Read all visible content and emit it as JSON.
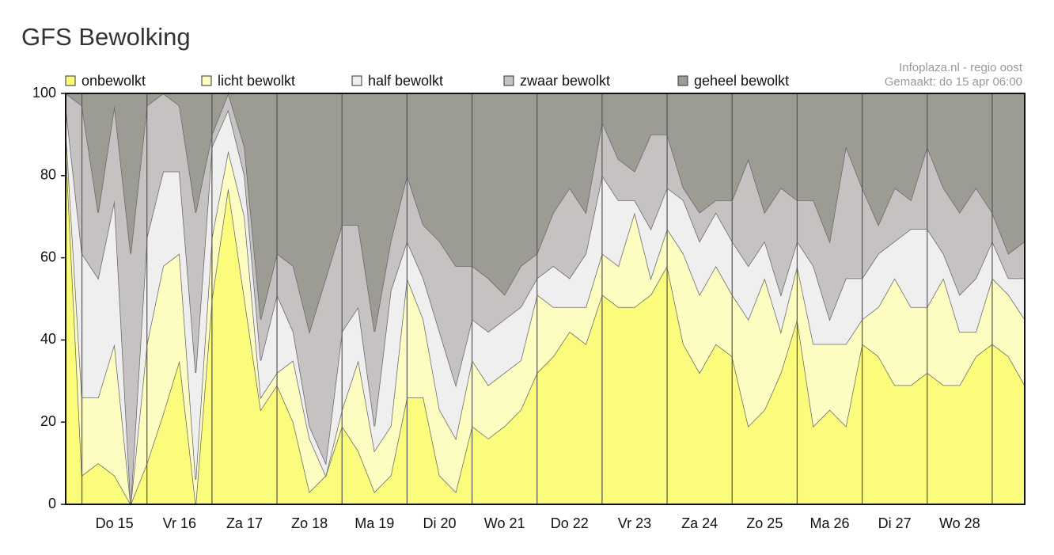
{
  "chart_data": {
    "type": "stacked_area",
    "title": "GFS Bewolking",
    "source": "Infoplaza.nl - regio oost",
    "created": "Gemaakt: do 15 apr 06:00",
    "categories": [
      null,
      null,
      null,
      "Do 15",
      null,
      null,
      null,
      "Vr 16",
      null,
      null,
      null,
      "Za 17",
      null,
      null,
      null,
      "Zo 18",
      null,
      null,
      null,
      "Ma 19",
      null,
      null,
      null,
      "Di 20",
      null,
      null,
      null,
      "Wo 21",
      null,
      null,
      null,
      "Do 22",
      null,
      null,
      null,
      "Vr 23",
      null,
      null,
      null,
      "Za 24",
      null,
      null,
      null,
      "Zo 25",
      null,
      null,
      null,
      "Ma 26",
      null,
      null,
      null,
      "Di 27",
      null,
      null,
      null,
      "Wo 28",
      null,
      null,
      null,
      null
    ],
    "series": [
      {
        "name": "onbewolkt",
        "color": "#fbfb7c",
        "values": [
          88,
          7,
          10,
          7,
          0,
          10,
          22,
          35,
          0,
          50,
          77,
          50,
          23,
          29,
          20,
          3,
          7,
          19,
          13,
          3,
          7,
          26,
          26,
          7,
          3,
          19,
          16,
          19,
          23,
          32,
          36,
          42,
          39,
          51,
          48,
          48,
          51,
          58,
          39,
          32,
          39,
          36,
          19,
          23,
          32,
          45,
          19,
          23,
          19,
          39,
          36,
          29,
          29,
          32,
          29,
          29,
          36,
          39,
          36,
          29
        ]
      },
      {
        "name": "licht bewolkt",
        "color": "#fdfdc2",
        "values": [
          4,
          19,
          16,
          32,
          0,
          29,
          36,
          26,
          6,
          15,
          9,
          20,
          3,
          3,
          15,
          13,
          0,
          4,
          22,
          10,
          12,
          29,
          19,
          16,
          13,
          16,
          13,
          13,
          12,
          19,
          12,
          6,
          9,
          10,
          10,
          23,
          4,
          9,
          22,
          19,
          19,
          15,
          26,
          32,
          10,
          13,
          20,
          16,
          20,
          6,
          12,
          26,
          19,
          16,
          26,
          13,
          6,
          16,
          15,
          16
        ]
      },
      {
        "name": "half bewolkt",
        "color": "#efefef",
        "values": [
          5,
          35,
          29,
          35,
          0,
          26,
          23,
          20,
          26,
          22,
          10,
          10,
          9,
          19,
          7,
          3,
          3,
          19,
          13,
          6,
          33,
          9,
          10,
          19,
          13,
          10,
          13,
          13,
          13,
          4,
          10,
          7,
          13,
          19,
          16,
          3,
          12,
          10,
          13,
          13,
          13,
          13,
          13,
          9,
          9,
          6,
          19,
          6,
          16,
          10,
          13,
          9,
          19,
          19,
          6,
          9,
          13,
          9,
          4,
          10
        ]
      },
      {
        "name": "zwaar bewolkt",
        "color": "#c6c2c2",
        "values": [
          3,
          36,
          16,
          23,
          61,
          32,
          19,
          16,
          39,
          3,
          4,
          7,
          10,
          10,
          16,
          23,
          45,
          26,
          20,
          23,
          12,
          16,
          13,
          22,
          29,
          13,
          13,
          6,
          10,
          6,
          13,
          22,
          10,
          13,
          10,
          7,
          23,
          13,
          3,
          7,
          3,
          10,
          26,
          7,
          26,
          10,
          16,
          19,
          32,
          22,
          7,
          13,
          7,
          20,
          16,
          20,
          22,
          7,
          6,
          9
        ]
      },
      {
        "name": "geheel bewolkt",
        "color": "#9c9c94",
        "values": [
          0,
          3,
          29,
          3,
          39,
          3,
          0,
          3,
          29,
          10,
          0,
          13,
          55,
          39,
          42,
          58,
          45,
          32,
          32,
          58,
          36,
          20,
          32,
          36,
          42,
          42,
          45,
          49,
          42,
          39,
          29,
          23,
          29,
          7,
          16,
          19,
          10,
          10,
          23,
          29,
          26,
          26,
          16,
          29,
          23,
          26,
          26,
          36,
          13,
          23,
          32,
          23,
          26,
          13,
          23,
          29,
          23,
          29,
          39,
          36
        ]
      }
    ],
    "ylim": [
      0,
      100
    ],
    "yticks": [
      0,
      20,
      40,
      60,
      80,
      100
    ],
    "grid": false
  }
}
